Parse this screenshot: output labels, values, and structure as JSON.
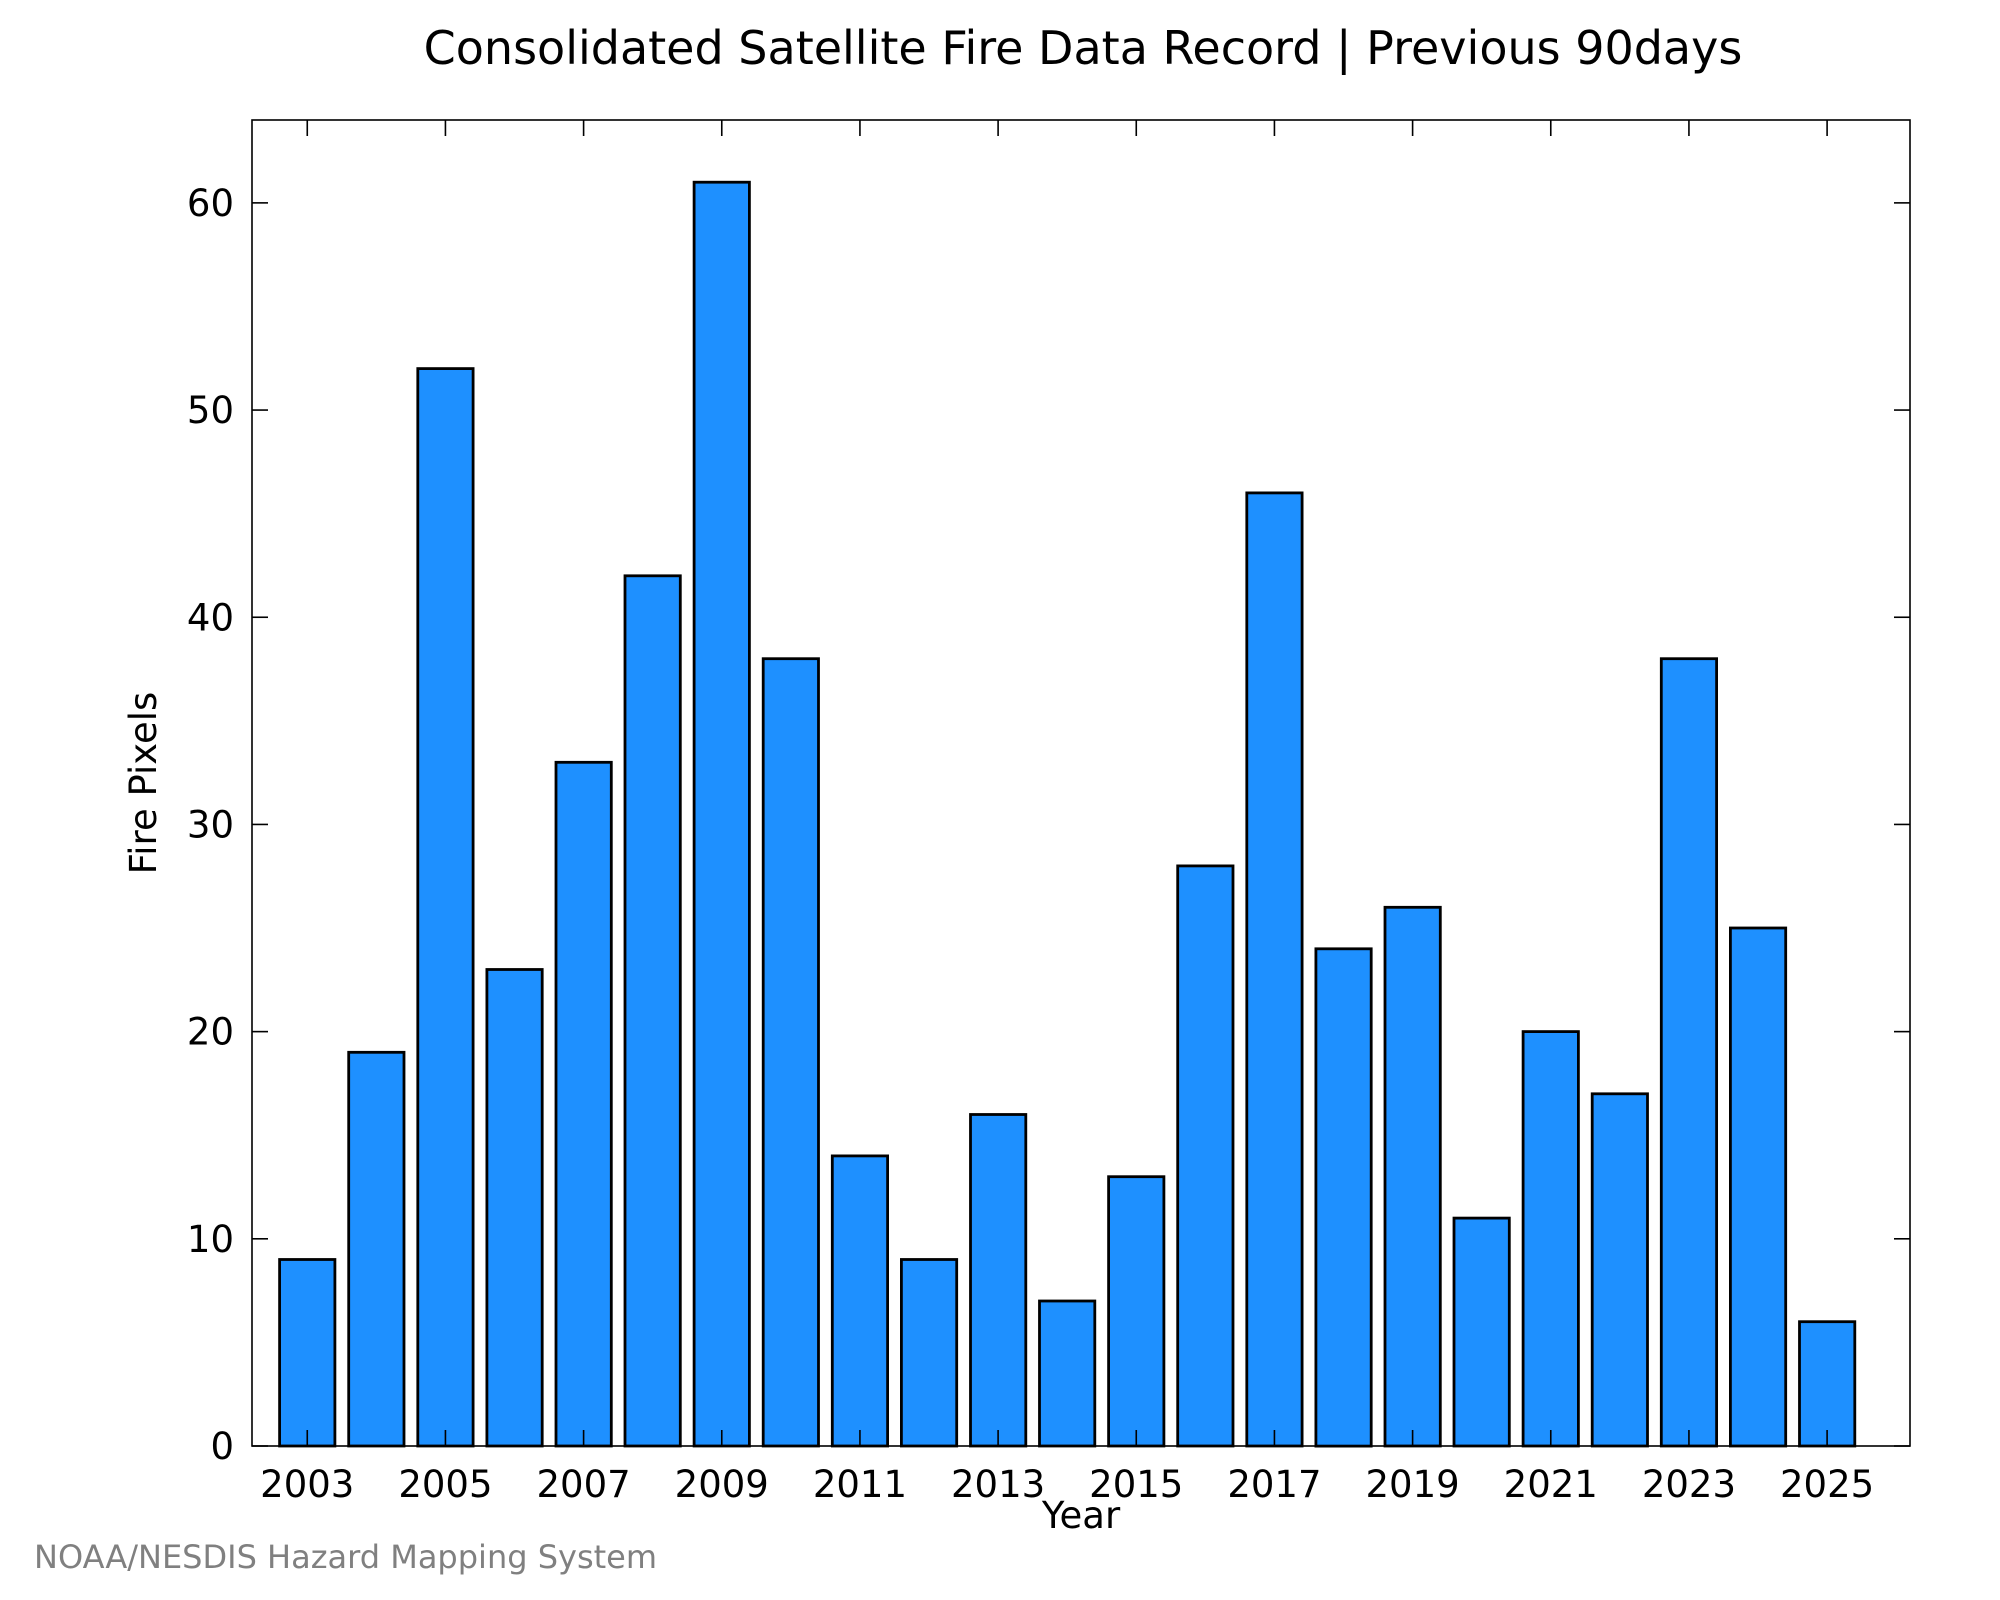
{
  "chart_data": {
    "type": "bar",
    "title": "Consolidated Satellite Fire Data Record | Previous 90days",
    "xlabel": "Year",
    "ylabel": "Fire Pixels",
    "categories": [
      "2003",
      "2004",
      "2005",
      "2006",
      "2007",
      "2008",
      "2009",
      "2010",
      "2011",
      "2012",
      "2013",
      "2014",
      "2015",
      "2016",
      "2017",
      "2018",
      "2019",
      "2020",
      "2021",
      "2022",
      "2023",
      "2024",
      "2025"
    ],
    "values": [
      9,
      19,
      52,
      23,
      33,
      42,
      61,
      38,
      14,
      9,
      16,
      7,
      13,
      28,
      46,
      24,
      26,
      11,
      20,
      17,
      38,
      25,
      6
    ],
    "x_tick_labels": [
      "2003",
      "2005",
      "2007",
      "2009",
      "2011",
      "2013",
      "2015",
      "2017",
      "2019",
      "2021",
      "2023",
      "2025"
    ],
    "y_ticks": [
      0,
      10,
      20,
      30,
      40,
      50,
      60
    ],
    "ylim": [
      0,
      64
    ],
    "xlim": [
      2002.2,
      2026.2
    ],
    "grid": false,
    "bar_color": "#1e90ff",
    "bar_edge_color": "#000000"
  },
  "footer": {
    "credit": "NOAA/NESDIS Hazard Mapping System",
    "credit_color": "#808080"
  }
}
